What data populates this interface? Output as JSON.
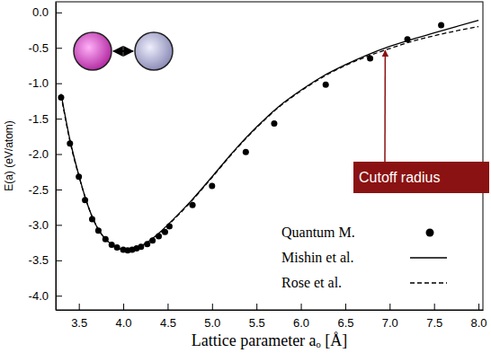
{
  "chart_data": {
    "type": "line",
    "xlabel": "Lattice parameter aₒ [Å]",
    "ylabel": "E(a) (eV/atom)",
    "xlim": [
      3.24,
      8.05
    ],
    "ylim": [
      -4.2,
      0.15
    ],
    "xticks": [
      3.5,
      {
        "value": 4,
        "label": "4.0"
      },
      4.5,
      {
        "value": 5,
        "label": "5.0"
      },
      5.5,
      {
        "value": 6,
        "label": "6.0"
      },
      6.5,
      {
        "value": 7,
        "label": "7.0"
      },
      7.5,
      {
        "value": 8,
        "label": "8.0"
      }
    ],
    "yticks": [
      {
        "value": -4,
        "label": "-4.0"
      },
      -3.5,
      {
        "value": -3,
        "label": "-3.0"
      },
      -2.5,
      {
        "value": -2,
        "label": "-2.0"
      },
      -1.5,
      {
        "value": -1,
        "label": "-1.0"
      },
      -0.5,
      {
        "value": 0,
        "label": "0.0"
      }
    ],
    "legend": "lower right",
    "annotations": [
      {
        "text": "Cutoff radius",
        "x": 6.95,
        "y": -0.5
      }
    ],
    "series": [
      {
        "name": "Quantum M.",
        "type": "scatter",
        "marker": "circle",
        "color": "#000000",
        "x": [
          3.3,
          3.4,
          3.5,
          3.57,
          3.65,
          3.72,
          3.8,
          3.87,
          3.93,
          4.0,
          4.05,
          4.1,
          4.15,
          4.2,
          4.27,
          4.33,
          4.4,
          4.47,
          4.52,
          4.78,
          5.0,
          5.38,
          5.7,
          6.28,
          6.78,
          7.2,
          7.58
        ],
        "values": [
          -1.2,
          -1.85,
          -2.32,
          -2.65,
          -2.92,
          -3.08,
          -3.2,
          -3.28,
          -3.32,
          -3.35,
          -3.36,
          -3.35,
          -3.33,
          -3.31,
          -3.27,
          -3.22,
          -3.16,
          -3.1,
          -3.02,
          -2.72,
          -2.45,
          -1.97,
          -1.57,
          -1.02,
          -0.65,
          -0.38,
          -0.18
        ]
      },
      {
        "name": "Mishin et al.",
        "type": "line",
        "line_style": "solid",
        "color": "#000000",
        "x": [
          3.3,
          3.4,
          3.5,
          3.6,
          3.7,
          3.8,
          3.9,
          4.0,
          4.1,
          4.2,
          4.3,
          4.4,
          4.5,
          4.75,
          5.0,
          5.25,
          5.5,
          5.75,
          6.0,
          6.25,
          6.5,
          6.75,
          7.0,
          7.25,
          7.5,
          7.75,
          8.0
        ],
        "values": [
          -1.15,
          -1.8,
          -2.3,
          -2.72,
          -3.02,
          -3.2,
          -3.3,
          -3.35,
          -3.35,
          -3.3,
          -3.22,
          -3.12,
          -3.0,
          -2.68,
          -2.32,
          -1.95,
          -1.62,
          -1.33,
          -1.1,
          -0.9,
          -0.74,
          -0.6,
          -0.48,
          -0.38,
          -0.29,
          -0.2,
          -0.11
        ]
      },
      {
        "name": "Rose et al.",
        "type": "line",
        "line_style": "dashed",
        "color": "#000000",
        "x": [
          3.3,
          3.4,
          3.5,
          3.6,
          3.7,
          3.8,
          3.9,
          4.0,
          4.1,
          4.2,
          4.3,
          4.4,
          4.5,
          4.75,
          5.0,
          5.25,
          5.5,
          5.75,
          6.0,
          6.25,
          6.5,
          6.75,
          7.0,
          7.25,
          7.5,
          7.75,
          8.0
        ],
        "values": [
          -1.17,
          -1.82,
          -2.31,
          -2.72,
          -3.02,
          -3.2,
          -3.3,
          -3.35,
          -3.35,
          -3.3,
          -3.22,
          -3.13,
          -3.01,
          -2.69,
          -2.33,
          -1.96,
          -1.63,
          -1.34,
          -1.11,
          -0.91,
          -0.75,
          -0.62,
          -0.51,
          -0.41,
          -0.33,
          -0.26,
          -0.2
        ]
      }
    ]
  }
}
